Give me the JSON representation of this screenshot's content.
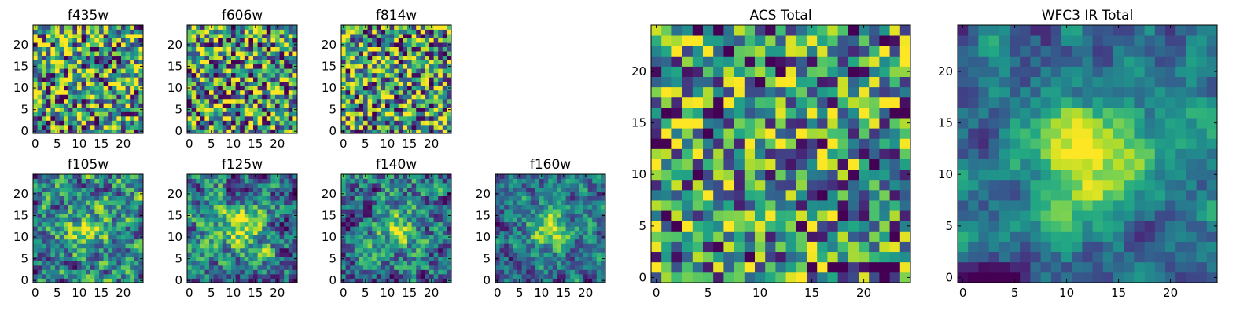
{
  "chart_data": [
    {
      "type": "heatmap",
      "title": "f435w",
      "xticks": [
        "0",
        "5",
        "10",
        "15",
        "20"
      ],
      "yticks": [
        "0",
        "5",
        "10",
        "15",
        "20"
      ],
      "xlim": [
        -0.5,
        24.5
      ],
      "ylim": [
        -0.5,
        24.5
      ],
      "grid": false,
      "colormap": "viridis",
      "grid_size": 25,
      "seed": 11,
      "smooth": 0,
      "blob": 0
    },
    {
      "type": "heatmap",
      "title": "f606w",
      "xticks": [
        "0",
        "5",
        "10",
        "15",
        "20"
      ],
      "yticks": [
        "0",
        "5",
        "10",
        "15",
        "20"
      ],
      "xlim": [
        -0.5,
        24.5
      ],
      "ylim": [
        -0.5,
        24.5
      ],
      "grid": false,
      "colormap": "viridis",
      "grid_size": 25,
      "seed": 23,
      "smooth": 0,
      "blob": 0
    },
    {
      "type": "heatmap",
      "title": "f814w",
      "xticks": [
        "0",
        "5",
        "10",
        "15",
        "20"
      ],
      "yticks": [
        "0",
        "5",
        "10",
        "15",
        "20"
      ],
      "xlim": [
        -0.5,
        24.5
      ],
      "ylim": [
        -0.5,
        24.5
      ],
      "grid": false,
      "colormap": "viridis",
      "grid_size": 25,
      "seed": 37,
      "smooth": 0,
      "blob": 0
    },
    {
      "type": "heatmap",
      "title": "f105w",
      "xticks": [
        "0",
        "5",
        "10",
        "15",
        "20"
      ],
      "yticks": [
        "0",
        "5",
        "10",
        "15",
        "20"
      ],
      "xlim": [
        -0.5,
        24.5
      ],
      "ylim": [
        -0.5,
        24.5
      ],
      "grid": false,
      "colormap": "viridis",
      "grid_size": 25,
      "seed": 41,
      "smooth": 1,
      "blob": 0.3
    },
    {
      "type": "heatmap",
      "title": "f125w",
      "xticks": [
        "0",
        "5",
        "10",
        "15",
        "20"
      ],
      "yticks": [
        "0",
        "5",
        "10",
        "15",
        "20"
      ],
      "xlim": [
        -0.5,
        24.5
      ],
      "ylim": [
        -0.5,
        24.5
      ],
      "grid": false,
      "colormap": "viridis",
      "grid_size": 25,
      "seed": 53,
      "smooth": 1,
      "blob": 0.35
    },
    {
      "type": "heatmap",
      "title": "f140w",
      "xticks": [
        "0",
        "5",
        "10",
        "15",
        "20"
      ],
      "yticks": [
        "0",
        "5",
        "10",
        "15",
        "20"
      ],
      "xlim": [
        -0.5,
        24.5
      ],
      "ylim": [
        -0.5,
        24.5
      ],
      "grid": false,
      "colormap": "viridis",
      "grid_size": 25,
      "seed": 67,
      "smooth": 1,
      "blob": 0.3
    },
    {
      "type": "heatmap",
      "title": "f160w",
      "xticks": [
        "0",
        "5",
        "10",
        "15",
        "20"
      ],
      "yticks": [
        "0",
        "5",
        "10",
        "15",
        "20"
      ],
      "xlim": [
        -0.5,
        24.5
      ],
      "ylim": [
        -0.5,
        24.5
      ],
      "grid": false,
      "colormap": "viridis",
      "grid_size": 25,
      "seed": 79,
      "smooth": 1,
      "blob": 0.5
    },
    {
      "type": "heatmap",
      "title": "ACS Total",
      "xticks": [
        "0",
        "5",
        "10",
        "15",
        "20"
      ],
      "yticks": [
        "0",
        "5",
        "10",
        "15",
        "20"
      ],
      "xlim": [
        -0.5,
        24.5
      ],
      "ylim": [
        -0.5,
        24.5
      ],
      "grid": false,
      "colormap": "viridis",
      "grid_size": 25,
      "seed": 83,
      "smooth": 0,
      "blob": 0.1
    },
    {
      "type": "heatmap",
      "title": "WFC3 IR Total",
      "xticks": [
        "0",
        "5",
        "10",
        "15",
        "20"
      ],
      "yticks": [
        "0",
        "5",
        "10",
        "15",
        "20"
      ],
      "xlim": [
        -0.5,
        24.5
      ],
      "ylim": [
        -0.5,
        24.5
      ],
      "grid": false,
      "colormap": "viridis",
      "grid_size": 25,
      "seed": 97,
      "smooth": 2,
      "blob": 0.55
    }
  ]
}
